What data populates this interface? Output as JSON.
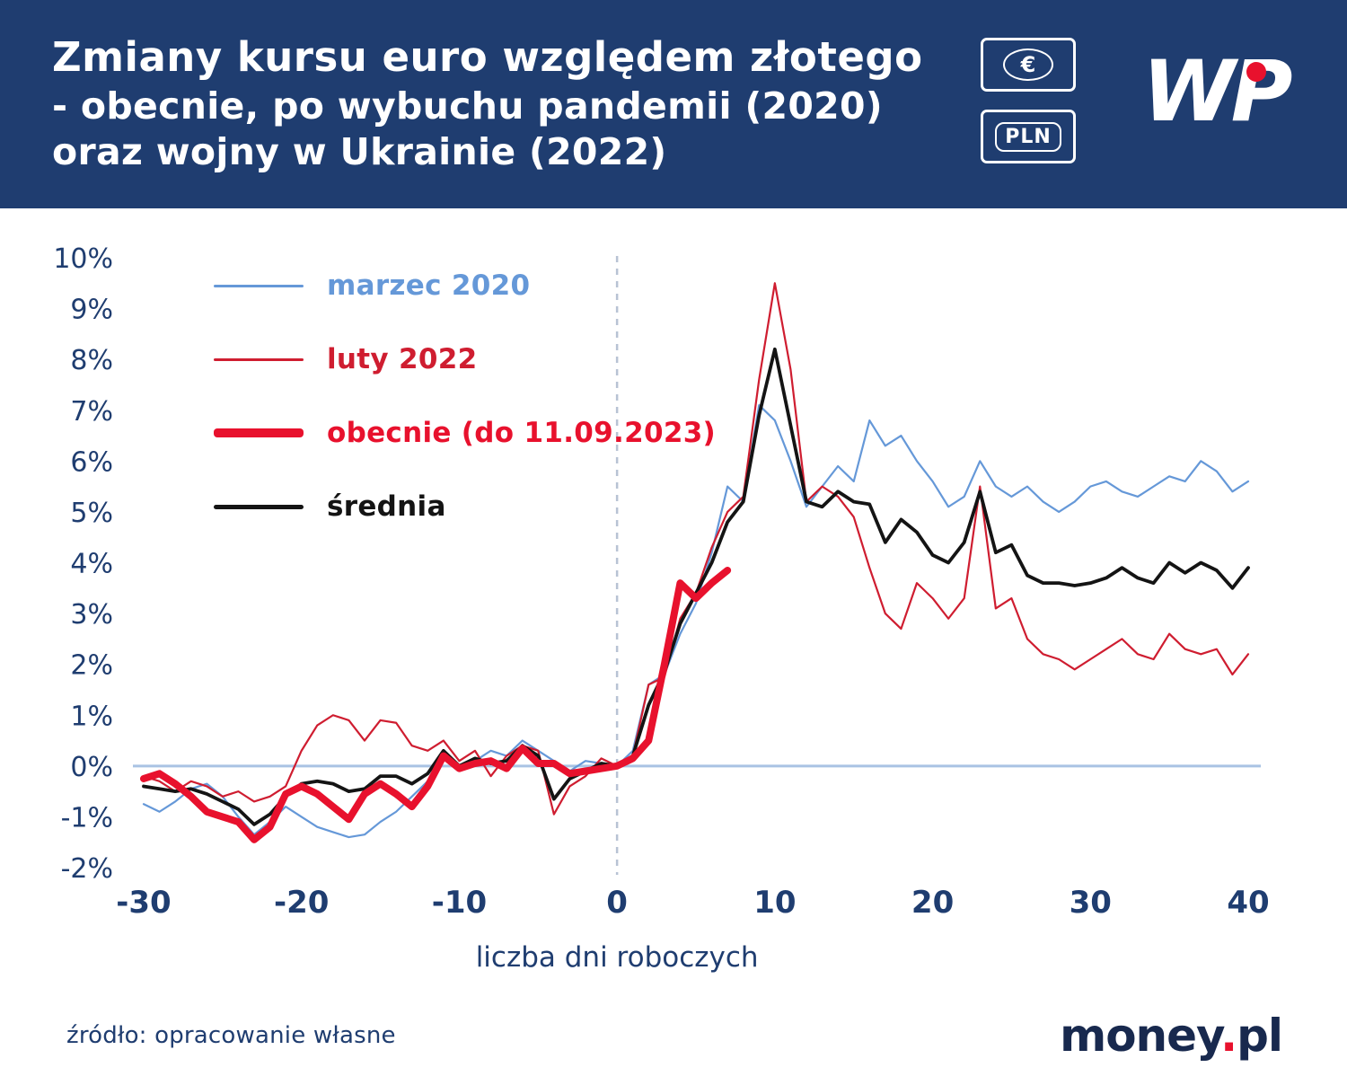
{
  "header": {
    "title_lines": [
      "Zmiany kursu euro względem złotego",
      "- obecnie, po wybuchu pandemii (2020)",
      "oraz wojny w Ukrainie (2022)"
    ],
    "badges": [
      "€",
      "PLN"
    ],
    "logo_text": "WP",
    "bg_color": "#1f3d70"
  },
  "footer": {
    "source": "źródło: opracowanie własne",
    "logo": {
      "main": "money",
      "dot": ".",
      "tld": "pl"
    }
  },
  "chart_data": {
    "type": "line",
    "title": "Zmiany kursu euro względem złotego - obecnie, po wybuchu pandemii (2020) oraz wojny w Ukrainie (2022)",
    "xlabel": "liczba dni roboczych",
    "ylabel": "",
    "xlim": [
      -30,
      40
    ],
    "ylim": [
      -2,
      10
    ],
    "x_ticks": [
      -30,
      -20,
      -10,
      0,
      10,
      20,
      30,
      40
    ],
    "y_ticks": [
      10,
      9,
      8,
      7,
      6,
      5,
      4,
      3,
      2,
      1,
      0,
      -1,
      -2
    ],
    "y_tick_suffix": "%",
    "grid": false,
    "zero_line": true,
    "event_line_x": 0,
    "legend_position": "top-left",
    "colors": {
      "zero_line": "#a9c3e3",
      "event_line": "#b8c3d4",
      "axis_text": "#1f3d70"
    },
    "x_step": 1,
    "series": [
      {
        "name": "marzec 2020",
        "color": "#6598d8",
        "width": 2.2,
        "x_start": -30,
        "values": [
          -0.75,
          -0.9,
          -0.7,
          -0.45,
          -0.35,
          -0.6,
          -1.0,
          -1.35,
          -1.1,
          -0.8,
          -1.0,
          -1.2,
          -1.3,
          -1.4,
          -1.35,
          -1.1,
          -0.9,
          -0.6,
          -0.3,
          0.25,
          -0.05,
          0.1,
          0.3,
          0.2,
          0.5,
          0.3,
          0.1,
          -0.1,
          0.1,
          0.05,
          0.0,
          0.3,
          1.6,
          1.8,
          2.6,
          3.2,
          4.2,
          5.5,
          5.2,
          7.1,
          6.8,
          6.0,
          5.1,
          5.5,
          5.9,
          5.6,
          6.8,
          6.3,
          6.5,
          6.0,
          5.6,
          5.1,
          5.3,
          6.0,
          5.5,
          5.3,
          5.5,
          5.2,
          5.0,
          5.2,
          5.5,
          5.6,
          5.4,
          5.3,
          5.5,
          5.7,
          5.6,
          6.0,
          5.8,
          5.4,
          5.6
        ]
      },
      {
        "name": "luty 2022",
        "color": "#cf1d30",
        "width": 2.2,
        "x_start": -30,
        "values": [
          -0.2,
          -0.3,
          -0.5,
          -0.3,
          -0.4,
          -0.6,
          -0.5,
          -0.7,
          -0.6,
          -0.4,
          0.3,
          0.8,
          1.0,
          0.9,
          0.5,
          0.9,
          0.85,
          0.4,
          0.3,
          0.5,
          0.1,
          0.3,
          -0.2,
          0.2,
          0.4,
          0.3,
          -0.95,
          -0.4,
          -0.2,
          0.15,
          0.0,
          0.2,
          1.6,
          1.75,
          2.9,
          3.4,
          4.3,
          5.0,
          5.3,
          7.6,
          9.5,
          7.8,
          5.2,
          5.5,
          5.3,
          4.9,
          3.9,
          3.0,
          2.7,
          3.6,
          3.3,
          2.9,
          3.3,
          5.5,
          3.1,
          3.3,
          2.5,
          2.2,
          2.1,
          1.9,
          2.1,
          2.3,
          2.5,
          2.2,
          2.1,
          2.6,
          2.3,
          2.2,
          2.3,
          1.8,
          2.2
        ]
      },
      {
        "name": "obecnie (do 11.09.2023)",
        "color": "#e8112d",
        "width": 8,
        "x_start": -30,
        "values": [
          -0.25,
          -0.15,
          -0.35,
          -0.6,
          -0.9,
          -1.0,
          -1.1,
          -1.45,
          -1.2,
          -0.55,
          -0.4,
          -0.55,
          -0.8,
          -1.05,
          -0.55,
          -0.35,
          -0.55,
          -0.8,
          -0.4,
          0.2,
          -0.05,
          0.05,
          0.1,
          -0.05,
          0.35,
          0.05,
          0.05,
          -0.15,
          -0.1,
          -0.05,
          0.0,
          0.15,
          0.5,
          2.0,
          3.6,
          3.3,
          3.6,
          3.85
        ]
      },
      {
        "name": "średnia",
        "color": "#141414",
        "width": 3.8,
        "x_start": -30,
        "values": [
          -0.4,
          -0.45,
          -0.5,
          -0.45,
          -0.55,
          -0.7,
          -0.85,
          -1.15,
          -0.95,
          -0.6,
          -0.35,
          -0.3,
          -0.35,
          -0.5,
          -0.45,
          -0.2,
          -0.2,
          -0.35,
          -0.15,
          0.3,
          0.0,
          0.15,
          0.05,
          0.1,
          0.4,
          0.2,
          -0.65,
          -0.25,
          -0.1,
          0.05,
          0.0,
          0.2,
          1.2,
          1.85,
          2.8,
          3.4,
          4.0,
          4.8,
          5.2,
          6.9,
          8.2,
          6.7,
          5.2,
          5.1,
          5.4,
          5.2,
          5.15,
          4.4,
          4.85,
          4.6,
          4.15,
          4.0,
          4.4,
          5.4,
          4.2,
          4.35,
          3.75,
          3.6,
          3.6,
          3.55,
          3.6,
          3.7,
          3.9,
          3.7,
          3.6,
          4.0,
          3.8,
          4.0,
          3.85,
          3.5,
          3.9
        ]
      }
    ]
  }
}
